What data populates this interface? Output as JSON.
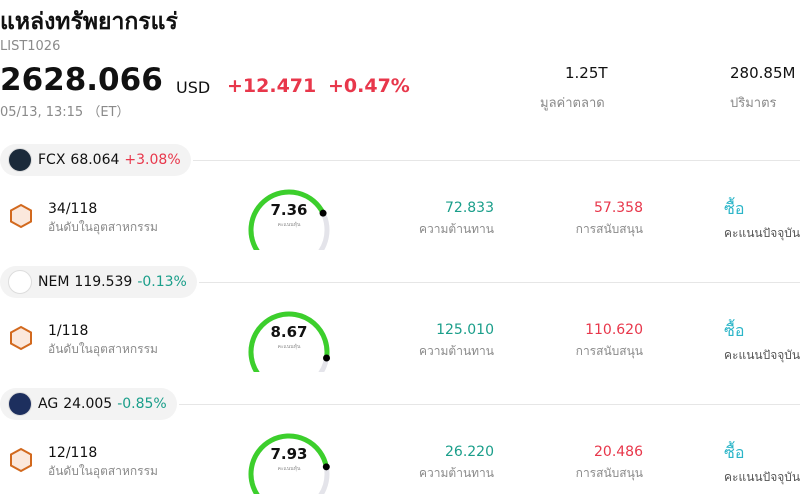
{
  "header": {
    "title": "แหล่งทรัพยากรแร่",
    "code": "LIST1026",
    "price": "2628.066",
    "currency": "USD",
    "change": "+12.471",
    "change_pct": "+0.47%",
    "time": "05/13, 13:15 （ET）",
    "stats": [
      {
        "value": "1.25T",
        "label": "มูลค่าตลาด"
      },
      {
        "value": "280.85M",
        "label": "ปริมาตร"
      }
    ]
  },
  "stocks": [
    {
      "ticker": "FCX",
      "price": "68.064",
      "change_pct": "+3.08%",
      "rank": "34/118",
      "rank_label": "อันดับในอุตสาหกรรม",
      "score": 7.36,
      "score_label": "คะแนนหุ้น",
      "resistance": "72.833",
      "resistance_label": "ความต้านทาน",
      "support": "57.358",
      "support_label": "การสนับสนุน",
      "signal": "ซื้อ",
      "signal_label": "คะแนนปัจจุบัน"
    },
    {
      "ticker": "NEM",
      "price": "119.539",
      "change_pct": "-0.13%",
      "rank": "1/118",
      "rank_label": "อันดับในอุตสาหกรรม",
      "score": 8.67,
      "score_label": "คะแนนหุ้น",
      "resistance": "125.010",
      "resistance_label": "ความต้านทาน",
      "support": "110.620",
      "support_label": "การสนับสนุน",
      "signal": "ซื้อ",
      "signal_label": "คะแนนปัจจุบัน"
    },
    {
      "ticker": "AG",
      "price": "24.005",
      "change_pct": "-0.85%",
      "rank": "12/118",
      "rank_label": "อันดับในอุตสาหกรรม",
      "score": 7.93,
      "score_label": "คะแนนหุ้น",
      "resistance": "26.220",
      "resistance_label": "ความต้านทาน",
      "support": "20.486",
      "support_label": "การสนับสนุน",
      "signal": "ซื้อ",
      "signal_label": "คะแนนปัจจุบัน"
    }
  ]
}
